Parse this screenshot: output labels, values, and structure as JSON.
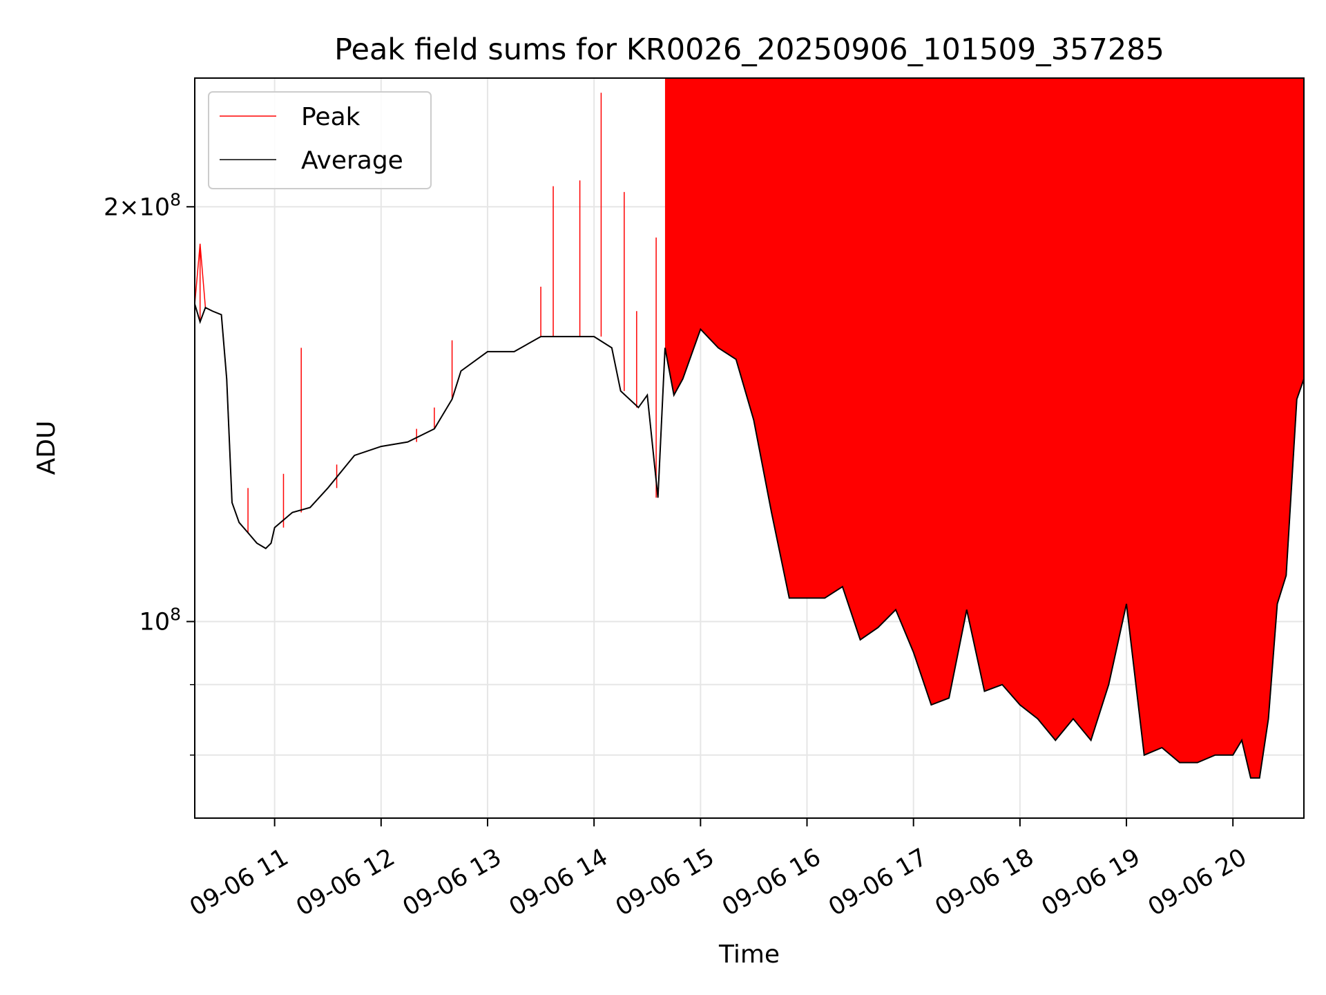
{
  "chart_data": {
    "type": "line",
    "title": "Peak field sums for KR0026_20250906_101509_357285",
    "xlabel": "Time",
    "ylabel": "ADU",
    "xlim": [
      "09-06 10:15",
      "09-06 20:40"
    ],
    "ylim": [
      72000000,
      248000000
    ],
    "yscale": "log",
    "grid": true,
    "legend_position": "top-left",
    "x_tick_labels": [
      "09-06 11",
      "09-06 12",
      "09-06 13",
      "09-06 14",
      "09-06 15",
      "09-06 16",
      "09-06 17",
      "09-06 18",
      "09-06 19",
      "09-06 20"
    ],
    "x_ticks": [
      "09-06 11:00",
      "09-06 12:00",
      "09-06 13:00",
      "09-06 14:00",
      "09-06 15:00",
      "09-06 16:00",
      "09-06 17:00",
      "09-06 18:00",
      "09-06 19:00",
      "09-06 20:00"
    ],
    "y_tick_labels": [
      {
        "value": 100000000,
        "base": "10",
        "exp": "8",
        "coef": ""
      },
      {
        "value": 200000000,
        "base": "10",
        "exp": "8",
        "coef": "2×"
      }
    ],
    "y_minor_ticks": [
      80000000,
      90000000
    ],
    "series": [
      {
        "name": "Average",
        "color": "#000000",
        "x": [
          "09-06 10:15",
          "09-06 10:18",
          "09-06 10:21",
          "09-06 10:25",
          "09-06 10:30",
          "09-06 10:33",
          "09-06 10:36",
          "09-06 10:40",
          "09-06 10:45",
          "09-06 10:50",
          "09-06 10:55",
          "09-06 10:58",
          "09-06 11:00",
          "09-06 11:10",
          "09-06 11:20",
          "09-06 11:30",
          "09-06 11:45",
          "09-06 12:00",
          "09-06 12:15",
          "09-06 12:30",
          "09-06 12:40",
          "09-06 12:45",
          "09-06 13:00",
          "09-06 13:15",
          "09-06 13:30",
          "09-06 13:45",
          "09-06 13:55",
          "09-06 14:00",
          "09-06 14:10",
          "09-06 14:15",
          "09-06 14:25",
          "09-06 14:30",
          "09-06 14:36",
          "09-06 14:40",
          "09-06 14:45",
          "09-06 14:50",
          "09-06 15:00",
          "09-06 15:10",
          "09-06 15:20",
          "09-06 15:30",
          "09-06 15:40",
          "09-06 15:50",
          "09-06 16:00",
          "09-06 16:10",
          "09-06 16:20",
          "09-06 16:30",
          "09-06 16:40",
          "09-06 16:50",
          "09-06 17:00",
          "09-06 17:10",
          "09-06 17:20",
          "09-06 17:30",
          "09-06 17:40",
          "09-06 17:50",
          "09-06 18:00",
          "09-06 18:10",
          "09-06 18:20",
          "09-06 18:30",
          "09-06 18:40",
          "09-06 18:50",
          "09-06 19:00",
          "09-06 19:10",
          "09-06 19:20",
          "09-06 19:30",
          "09-06 19:40",
          "09-06 19:50",
          "09-06 20:00",
          "09-06 20:05",
          "09-06 20:10",
          "09-06 20:15",
          "09-06 20:20",
          "09-06 20:25",
          "09-06 20:30",
          "09-06 20:36",
          "09-06 20:40"
        ],
        "values": [
          170000000,
          165000000,
          169000000,
          168000000,
          167000000,
          150000000,
          122000000,
          118000000,
          116000000,
          114000000,
          113000000,
          114000000,
          117000000,
          120000000,
          121000000,
          125000000,
          132000000,
          134000000,
          135000000,
          138000000,
          145000000,
          152000000,
          157000000,
          157000000,
          161000000,
          161000000,
          161000000,
          161000000,
          158000000,
          147000000,
          143000000,
          146000000,
          123000000,
          158000000,
          146000000,
          150000000,
          163000000,
          158000000,
          155000000,
          140000000,
          120000000,
          104000000,
          104000000,
          104000000,
          106000000,
          97000000,
          99000000,
          102000000,
          95000000,
          87000000,
          88000000,
          102000000,
          89000000,
          90000000,
          87000000,
          85000000,
          82000000,
          85000000,
          82000000,
          90000000,
          103000000,
          80000000,
          81000000,
          79000000,
          79000000,
          80000000,
          80000000,
          82000000,
          77000000,
          77000000,
          85000000,
          103000000,
          108000000,
          145000000,
          150000000
        ]
      },
      {
        "name": "Peak",
        "color": "#ff0000",
        "x": [
          "09-06 10:15",
          "09-06 10:18",
          "09-06 10:21",
          "09-06 10:25",
          "09-06 10:30",
          "09-06 10:33",
          "09-06 10:36",
          "09-06 10:40",
          "09-06 10:45",
          "09-06 10:50",
          "09-06 10:55",
          "09-06 10:58",
          "09-06 11:00",
          "09-06 11:10",
          "09-06 11:20",
          "09-06 11:30",
          "09-06 11:45",
          "09-06 12:00",
          "09-06 12:15",
          "09-06 12:30",
          "09-06 12:40",
          "09-06 12:45",
          "09-06 13:00",
          "09-06 13:15",
          "09-06 13:30",
          "09-06 13:45",
          "09-06 13:55",
          "09-06 14:00",
          "09-06 14:10",
          "09-06 14:15",
          "09-06 14:25",
          "09-06 14:30",
          "09-06 14:36",
          "09-06 14:40",
          "09-06 14:45",
          "09-06 14:50",
          "09-06 15:00",
          "09-06 15:10",
          "09-06 15:20",
          "09-06 15:30",
          "09-06 15:40",
          "09-06 15:50",
          "09-06 16:00",
          "09-06 16:10",
          "09-06 16:20",
          "09-06 16:30",
          "09-06 16:40",
          "09-06 16:50",
          "09-06 17:00",
          "09-06 17:10",
          "09-06 17:20",
          "09-06 17:30",
          "09-06 17:40",
          "09-06 17:50",
          "09-06 18:00",
          "09-06 18:10",
          "09-06 18:20",
          "09-06 18:30",
          "09-06 18:40",
          "09-06 18:50",
          "09-06 19:00",
          "09-06 19:10",
          "09-06 19:20",
          "09-06 19:30",
          "09-06 19:40",
          "09-06 19:50",
          "09-06 20:00",
          "09-06 20:05",
          "09-06 20:10",
          "09-06 20:15",
          "09-06 20:20",
          "09-06 20:25",
          "09-06 20:30",
          "09-06 20:36",
          "09-06 20:40"
        ],
        "values": [
          170000000,
          188000000,
          169000000,
          168000000,
          167000000,
          150000000,
          122000000,
          118000000,
          116000000,
          114000000,
          113000000,
          114000000,
          117000000,
          120000000,
          121000000,
          125000000,
          132000000,
          134000000,
          135000000,
          138000000,
          145000000,
          152000000,
          157000000,
          157000000,
          161000000,
          161000000,
          161000000,
          161000000,
          158000000,
          147000000,
          143000000,
          146000000,
          123000000,
          158000000,
          146000000,
          150000000,
          163000000,
          158000000,
          155000000,
          140000000,
          120000000,
          104000000,
          104000000,
          104000000,
          106000000,
          97000000,
          99000000,
          102000000,
          95000000,
          87000000,
          88000000,
          102000000,
          89000000,
          90000000,
          87000000,
          85000000,
          82000000,
          85000000,
          82000000,
          90000000,
          103000000,
          80000000,
          81000000,
          79000000,
          79000000,
          80000000,
          80000000,
          82000000,
          77000000,
          77000000,
          85000000,
          103000000,
          108000000,
          145000000,
          150000000
        ],
        "spikes": [
          {
            "x": "09-06 10:18",
            "y": 188000000
          },
          {
            "x": "09-06 10:45",
            "y": 125000000
          },
          {
            "x": "09-06 11:05",
            "y": 128000000
          },
          {
            "x": "09-06 11:15",
            "y": 158000000
          },
          {
            "x": "09-06 11:35",
            "y": 130000000
          },
          {
            "x": "09-06 12:20",
            "y": 138000000
          },
          {
            "x": "09-06 12:30",
            "y": 143000000
          },
          {
            "x": "09-06 12:40",
            "y": 160000000
          },
          {
            "x": "09-06 13:30",
            "y": 175000000
          },
          {
            "x": "09-06 13:37",
            "y": 207000000
          },
          {
            "x": "09-06 13:52",
            "y": 209000000
          },
          {
            "x": "09-06 14:04",
            "y": 242000000
          },
          {
            "x": "09-06 14:17",
            "y": 205000000
          },
          {
            "x": "09-06 14:24",
            "y": 168000000
          },
          {
            "x": "09-06 14:35",
            "y": 190000000
          }
        ],
        "band": {
          "note": "dense peak spikes from ~09-06 14:40 onward reaching the top of the plot",
          "x_start": "09-06 14:40",
          "x_end": "09-06 20:40",
          "y_top": 248000000
        }
      }
    ]
  }
}
